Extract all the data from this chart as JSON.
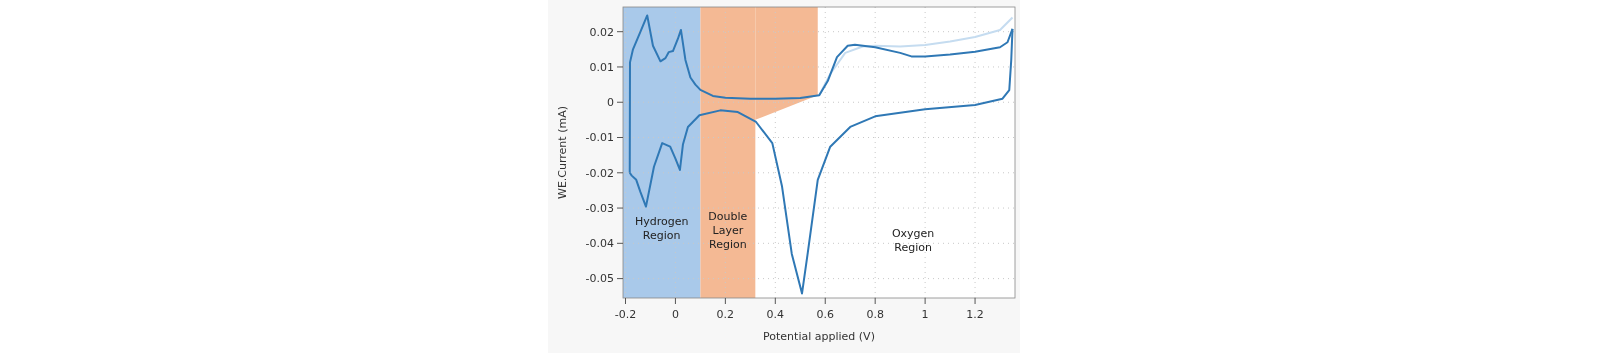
{
  "chart_data": {
    "type": "line",
    "xlabel": "Potential applied (V)",
    "ylabel": "WE.Current (mA)",
    "xlim": [
      -0.21,
      1.36
    ],
    "ylim": [
      -0.0555,
      0.027
    ],
    "xticks": [
      -0.2,
      0,
      0.2,
      0.4,
      0.6,
      0.8,
      1,
      1.2
    ],
    "yticks": [
      -0.05,
      -0.04,
      -0.03,
      -0.02,
      -0.01,
      0,
      0.01,
      0.02
    ],
    "grid": true,
    "line_style": "solid",
    "marker": "none",
    "bands": [
      {
        "axis": "x",
        "from": -0.21,
        "to": 0.1,
        "label": "Hydrogen Region",
        "color": "#a9c9ea"
      },
      {
        "axis": "x",
        "from": 0.1,
        "to": 0.32,
        "label": "Double Layer Region",
        "color": "#f4b994"
      }
    ],
    "annotations": [
      "Oxygen Region"
    ],
    "series": [
      {
        "color": "#c5dcf0",
        "x": [
          0.576,
          0.62,
          0.68,
          0.75,
          0.8,
          0.9,
          1.0,
          1.1,
          1.2,
          1.3,
          1.35
        ],
        "values": [
          0.002,
          0.008,
          0.014,
          0.0158,
          0.016,
          0.0158,
          0.0162,
          0.0172,
          0.0185,
          0.0205,
          0.024
        ]
      },
      {
        "color": "#2f78b5",
        "x": [
          -0.183,
          -0.182,
          -0.17,
          -0.14,
          -0.113,
          -0.09,
          -0.06,
          -0.04,
          -0.027,
          -0.01,
          0.01,
          0.022,
          0.04,
          0.06,
          0.08,
          0.1,
          0.15,
          0.2,
          0.3,
          0.4,
          0.5,
          0.576,
          0.61,
          0.647,
          0.69,
          0.719,
          0.8,
          0.9,
          0.945,
          1.0,
          1.1,
          1.2,
          1.3,
          1.33,
          1.35
        ],
        "values": [
          -0.02,
          0.0113,
          0.015,
          0.02,
          0.0246,
          0.016,
          0.0116,
          0.0125,
          0.0142,
          0.0145,
          0.018,
          0.0205,
          0.012,
          0.007,
          0.005,
          0.0035,
          0.0018,
          0.0013,
          0.001,
          0.001,
          0.0012,
          0.002,
          0.006,
          0.0128,
          0.016,
          0.0163,
          0.0156,
          0.014,
          0.013,
          0.013,
          0.0135,
          0.0143,
          0.0156,
          0.017,
          0.0208
        ]
      },
      {
        "color": "#2f78b5",
        "x": [
          1.35,
          1.345,
          1.337,
          1.31,
          1.2,
          1.0,
          0.8,
          0.7,
          0.62,
          0.57,
          0.53,
          0.507,
          0.466,
          0.427,
          0.388,
          0.323,
          0.25,
          0.18,
          0.096,
          0.05,
          0.03,
          0.018,
          0.0,
          -0.021,
          -0.053,
          -0.086,
          -0.118,
          -0.14,
          -0.157,
          -0.175,
          -0.183
        ],
        "values": [
          0.0208,
          0.012,
          0.0034,
          0.001,
          -0.0008,
          -0.002,
          -0.004,
          -0.007,
          -0.0126,
          -0.022,
          -0.0427,
          -0.0542,
          -0.043,
          -0.0239,
          -0.0116,
          -0.0056,
          -0.0028,
          -0.0023,
          -0.0037,
          -0.007,
          -0.012,
          -0.0192,
          -0.016,
          -0.0126,
          -0.0116,
          -0.0183,
          -0.0296,
          -0.0255,
          -0.022,
          -0.0208,
          -0.02
        ]
      }
    ]
  }
}
